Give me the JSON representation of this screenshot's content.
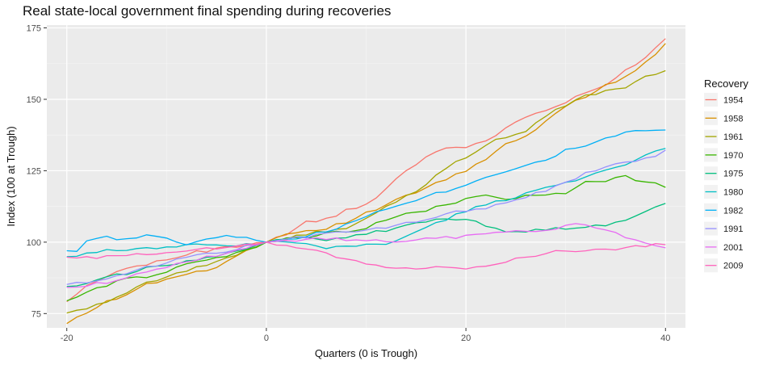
{
  "chart_data": {
    "type": "line",
    "title": "Real state-local government final spending during recoveries",
    "xlabel": "Quarters (0 is Trough)",
    "ylabel": "Index (100 at Trough)",
    "xlim": [
      -22,
      42
    ],
    "ylim": [
      70,
      176
    ],
    "xticks": [
      -20,
      0,
      20,
      40
    ],
    "yticks": [
      75,
      100,
      125,
      150,
      175
    ],
    "xtick_labels": [
      "-20",
      "0",
      "20",
      "40"
    ],
    "ytick_labels": [
      "75",
      "100",
      "125",
      "150",
      "175"
    ],
    "legend_title": "Recovery",
    "legend_position": "right",
    "x_start": -20,
    "x_end": 40,
    "series": [
      {
        "name": "1954",
        "color": "#F8766D",
        "keys": [
          [
            -20,
            79
          ],
          [
            -18,
            85
          ],
          [
            -16,
            88
          ],
          [
            -14,
            91
          ],
          [
            -12,
            92
          ],
          [
            -10,
            94
          ],
          [
            -8,
            96
          ],
          [
            -6,
            97
          ],
          [
            -4,
            98
          ],
          [
            -2,
            99
          ],
          [
            0,
            100
          ],
          [
            2,
            103
          ],
          [
            3,
            105
          ],
          [
            4,
            107
          ],
          [
            6,
            108
          ],
          [
            8,
            111
          ],
          [
            10,
            113
          ],
          [
            12,
            119
          ],
          [
            14,
            125
          ],
          [
            16,
            130
          ],
          [
            18,
            133
          ],
          [
            20,
            133.5
          ],
          [
            22,
            135
          ],
          [
            24,
            140
          ],
          [
            26,
            144
          ],
          [
            28,
            146
          ],
          [
            30,
            149
          ],
          [
            32,
            152
          ],
          [
            34,
            155
          ],
          [
            36,
            160
          ],
          [
            38,
            165
          ],
          [
            40,
            171
          ]
        ]
      },
      {
        "name": "1958",
        "color": "#D89000",
        "keys": [
          [
            -20,
            72
          ],
          [
            -18,
            75
          ],
          [
            -16,
            79
          ],
          [
            -14,
            82
          ],
          [
            -12,
            85
          ],
          [
            -10,
            87
          ],
          [
            -8,
            89
          ],
          [
            -6,
            90
          ],
          [
            -4,
            93
          ],
          [
            -2,
            97
          ],
          [
            0,
            100
          ],
          [
            2,
            103
          ],
          [
            4,
            104
          ],
          [
            6,
            105
          ],
          [
            8,
            107
          ],
          [
            10,
            110
          ],
          [
            12,
            113
          ],
          [
            14,
            116
          ],
          [
            16,
            119
          ],
          [
            18,
            122
          ],
          [
            20,
            125
          ],
          [
            22,
            129
          ],
          [
            24,
            134
          ],
          [
            26,
            137
          ],
          [
            28,
            142
          ],
          [
            30,
            148
          ],
          [
            32,
            151
          ],
          [
            34,
            155
          ],
          [
            36,
            158
          ],
          [
            38,
            163
          ],
          [
            40,
            169
          ]
        ]
      },
      {
        "name": "1961",
        "color": "#A3A500",
        "keys": [
          [
            -20,
            75.5
          ],
          [
            -18,
            77
          ],
          [
            -16,
            79
          ],
          [
            -14,
            82
          ],
          [
            -12,
            86
          ],
          [
            -10,
            88
          ],
          [
            -8,
            90
          ],
          [
            -6,
            92
          ],
          [
            -4,
            94
          ],
          [
            -2,
            97
          ],
          [
            0,
            100
          ],
          [
            2,
            101
          ],
          [
            4,
            103
          ],
          [
            6,
            104
          ],
          [
            8,
            105
          ],
          [
            10,
            108
          ],
          [
            12,
            112
          ],
          [
            14,
            116
          ],
          [
            16,
            120
          ],
          [
            18,
            126
          ],
          [
            20,
            130
          ],
          [
            22,
            134
          ],
          [
            24,
            137
          ],
          [
            26,
            139
          ],
          [
            28,
            144
          ],
          [
            30,
            148
          ],
          [
            32,
            151
          ],
          [
            34,
            153
          ],
          [
            36,
            153.5
          ],
          [
            38,
            158
          ],
          [
            40,
            160
          ]
        ]
      },
      {
        "name": "1970",
        "color": "#39B600",
        "keys": [
          [
            -20,
            80
          ],
          [
            -18,
            82
          ],
          [
            -16,
            85
          ],
          [
            -14,
            87
          ],
          [
            -12,
            88
          ],
          [
            -10,
            90
          ],
          [
            -8,
            92
          ],
          [
            -6,
            94
          ],
          [
            -4,
            95
          ],
          [
            -2,
            97
          ],
          [
            0,
            100
          ],
          [
            2,
            101
          ],
          [
            4,
            102
          ],
          [
            6,
            103
          ],
          [
            8,
            104
          ],
          [
            10,
            105
          ],
          [
            12,
            108
          ],
          [
            14,
            110
          ],
          [
            16,
            111
          ],
          [
            18,
            113
          ],
          [
            20,
            115
          ],
          [
            22,
            117
          ],
          [
            24,
            115
          ],
          [
            26,
            116
          ],
          [
            28,
            116.5
          ],
          [
            30,
            117
          ],
          [
            32,
            121
          ],
          [
            34,
            121.5
          ],
          [
            36,
            123
          ],
          [
            38,
            121
          ],
          [
            40,
            119.5
          ]
        ]
      },
      {
        "name": "1975",
        "color": "#00BF7D",
        "keys": [
          [
            -20,
            84
          ],
          [
            -18,
            86
          ],
          [
            -16,
            88
          ],
          [
            -14,
            89
          ],
          [
            -12,
            91
          ],
          [
            -10,
            92
          ],
          [
            -8,
            93
          ],
          [
            -6,
            95
          ],
          [
            -4,
            96
          ],
          [
            -2,
            98
          ],
          [
            0,
            100
          ],
          [
            2,
            101
          ],
          [
            4,
            102
          ],
          [
            6,
            101
          ],
          [
            8,
            102
          ],
          [
            10,
            103
          ],
          [
            12,
            104
          ],
          [
            14,
            106
          ],
          [
            16,
            107
          ],
          [
            18,
            108
          ],
          [
            20,
            108.5
          ],
          [
            22,
            106
          ],
          [
            24,
            104
          ],
          [
            26,
            104
          ],
          [
            28,
            104.5
          ],
          [
            30,
            105
          ],
          [
            32,
            105
          ],
          [
            34,
            106
          ],
          [
            36,
            108
          ],
          [
            38,
            111
          ],
          [
            40,
            113
          ]
        ]
      },
      {
        "name": "1980",
        "color": "#00BFC4",
        "keys": [
          [
            -20,
            95
          ],
          [
            -18,
            96
          ],
          [
            -16,
            97
          ],
          [
            -14,
            97.5
          ],
          [
            -12,
            98
          ],
          [
            -10,
            98.5
          ],
          [
            -8,
            99
          ],
          [
            -6,
            99
          ],
          [
            -4,
            98.5
          ],
          [
            -2,
            99
          ],
          [
            0,
            100
          ],
          [
            2,
            100
          ],
          [
            4,
            99
          ],
          [
            6,
            98
          ],
          [
            8,
            98.5
          ],
          [
            10,
            99
          ],
          [
            12,
            99.5
          ],
          [
            14,
            102
          ],
          [
            16,
            105
          ],
          [
            18,
            108
          ],
          [
            20,
            111
          ],
          [
            22,
            113
          ],
          [
            24,
            115
          ],
          [
            26,
            117
          ],
          [
            28,
            119
          ],
          [
            30,
            121
          ],
          [
            32,
            123
          ],
          [
            34,
            125
          ],
          [
            36,
            127
          ],
          [
            38,
            130
          ],
          [
            40,
            133
          ]
        ]
      },
      {
        "name": "1982",
        "color": "#00B0F6",
        "keys": [
          [
            -20,
            97
          ],
          [
            -19,
            97
          ],
          [
            -18,
            100
          ],
          [
            -16,
            102
          ],
          [
            -15,
            101
          ],
          [
            -14,
            101
          ],
          [
            -12,
            103
          ],
          [
            -11,
            102
          ],
          [
            -10,
            101
          ],
          [
            -9,
            100
          ],
          [
            -8,
            99
          ],
          [
            -6,
            101
          ],
          [
            -4,
            102
          ],
          [
            -2,
            102
          ],
          [
            0,
            100
          ],
          [
            2,
            101
          ],
          [
            4,
            102
          ],
          [
            6,
            104
          ],
          [
            8,
            106
          ],
          [
            10,
            109
          ],
          [
            12,
            112
          ],
          [
            14,
            114
          ],
          [
            16,
            116
          ],
          [
            18,
            118
          ],
          [
            20,
            120
          ],
          [
            22,
            123
          ],
          [
            24,
            125
          ],
          [
            26,
            127
          ],
          [
            28,
            129
          ],
          [
            30,
            132
          ],
          [
            32,
            134
          ],
          [
            34,
            136
          ],
          [
            36,
            138
          ],
          [
            37,
            139
          ],
          [
            38,
            139
          ],
          [
            40,
            139
          ]
        ]
      },
      {
        "name": "1991",
        "color": "#9590FF",
        "keys": [
          [
            -20,
            85
          ],
          [
            -18,
            86
          ],
          [
            -16,
            87
          ],
          [
            -14,
            89
          ],
          [
            -12,
            91
          ],
          [
            -10,
            93
          ],
          [
            -8,
            95
          ],
          [
            -6,
            96
          ],
          [
            -4,
            97
          ],
          [
            -2,
            98.5
          ],
          [
            0,
            100
          ],
          [
            2,
            101
          ],
          [
            4,
            102
          ],
          [
            6,
            103
          ],
          [
            8,
            103.5
          ],
          [
            10,
            104
          ],
          [
            12,
            105
          ],
          [
            14,
            107
          ],
          [
            16,
            108
          ],
          [
            18,
            110
          ],
          [
            20,
            111
          ],
          [
            22,
            112
          ],
          [
            24,
            114
          ],
          [
            26,
            116
          ],
          [
            28,
            118
          ],
          [
            30,
            121
          ],
          [
            32,
            124
          ],
          [
            34,
            126
          ],
          [
            36,
            128
          ],
          [
            38,
            129
          ],
          [
            40,
            132
          ]
        ]
      },
      {
        "name": "2001",
        "color": "#E76BF3",
        "keys": [
          [
            -20,
            84
          ],
          [
            -18,
            85
          ],
          [
            -16,
            86
          ],
          [
            -14,
            88
          ],
          [
            -12,
            90
          ],
          [
            -10,
            91
          ],
          [
            -8,
            93
          ],
          [
            -6,
            95
          ],
          [
            -4,
            96
          ],
          [
            -2,
            98
          ],
          [
            0,
            100
          ],
          [
            2,
            100.5
          ],
          [
            4,
            101
          ],
          [
            6,
            101
          ],
          [
            8,
            101
          ],
          [
            10,
            101
          ],
          [
            12,
            100.5
          ],
          [
            14,
            100.5
          ],
          [
            16,
            101
          ],
          [
            18,
            101.5
          ],
          [
            20,
            102
          ],
          [
            22,
            103
          ],
          [
            24,
            104
          ],
          [
            26,
            103.5
          ],
          [
            28,
            104
          ],
          [
            30,
            106
          ],
          [
            32,
            106
          ],
          [
            34,
            104
          ],
          [
            36,
            102
          ],
          [
            38,
            100
          ],
          [
            40,
            98
          ]
        ]
      },
      {
        "name": "2009",
        "color": "#FF62BC",
        "keys": [
          [
            -20,
            95
          ],
          [
            -18,
            94.5
          ],
          [
            -16,
            95
          ],
          [
            -14,
            95.5
          ],
          [
            -12,
            96
          ],
          [
            -10,
            96.5
          ],
          [
            -8,
            97
          ],
          [
            -6,
            97.5
          ],
          [
            -4,
            98
          ],
          [
            -2,
            99
          ],
          [
            0,
            100
          ],
          [
            2,
            99
          ],
          [
            4,
            97.5
          ],
          [
            6,
            96
          ],
          [
            8,
            94
          ],
          [
            10,
            92.5
          ],
          [
            12,
            91.5
          ],
          [
            14,
            91
          ],
          [
            16,
            91
          ],
          [
            18,
            91
          ],
          [
            20,
            91
          ],
          [
            22,
            92
          ],
          [
            24,
            93.5
          ],
          [
            26,
            95
          ],
          [
            28,
            96
          ],
          [
            30,
            97
          ],
          [
            32,
            97
          ],
          [
            34,
            97.5
          ],
          [
            36,
            98
          ],
          [
            38,
            98.5
          ],
          [
            40,
            99.5
          ]
        ]
      }
    ]
  }
}
